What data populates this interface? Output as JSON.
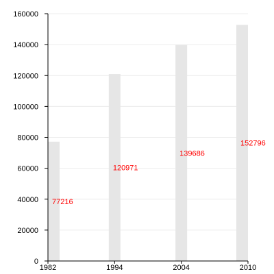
{
  "chart_data": {
    "type": "bar",
    "title": "",
    "xlabel": "",
    "ylabel": "",
    "categories": [
      "1982",
      "1994",
      "2004",
      "2010"
    ],
    "values": [
      77216,
      120971,
      139686,
      152796
    ],
    "value_labels": [
      "77216",
      "120971",
      "139686",
      "152796"
    ],
    "ylim": [
      0,
      160000
    ],
    "yticks": [
      0,
      20000,
      40000,
      60000,
      80000,
      100000,
      120000,
      140000,
      160000
    ],
    "ytick_labels": [
      "0",
      "20000",
      "40000",
      "60000",
      "80000",
      "100000",
      "120000",
      "140000",
      "160000"
    ],
    "grid": true,
    "legend": "none",
    "colors": {
      "bar": "#e6e6e6",
      "grid": "#ececec",
      "axis": "#000000",
      "data_label": "#ff0000"
    }
  }
}
